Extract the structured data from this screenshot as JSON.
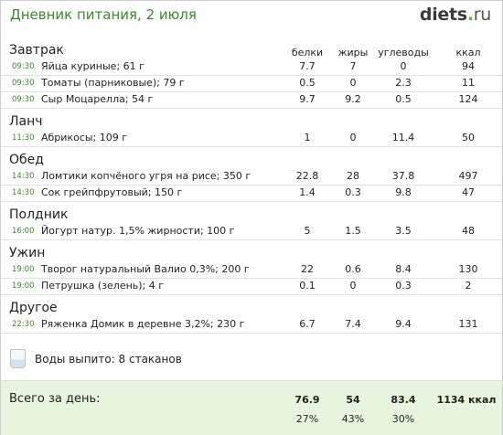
{
  "header": {
    "title": "Дневник питания, 2 июля",
    "logo_main": "diets",
    "logo_dot": ".",
    "logo_tld": "ru"
  },
  "columns": {
    "protein": "белки",
    "fat": "жиры",
    "carbs": "углеводы",
    "kcal": "ккал"
  },
  "meals": [
    {
      "title": "Завтрак",
      "items": [
        {
          "time": "09:30",
          "name": "Яйца куриные; 61 г",
          "protein": "7.7",
          "fat": "7",
          "carbs": "0",
          "kcal": "94"
        },
        {
          "time": "09:30",
          "name": "Томаты (парниковые); 79 г",
          "protein": "0.5",
          "fat": "0",
          "carbs": "2.3",
          "kcal": "11"
        },
        {
          "time": "09:30",
          "name": "Сыр Моцарелла; 54 г",
          "protein": "9.7",
          "fat": "9.2",
          "carbs": "0.5",
          "kcal": "124"
        }
      ]
    },
    {
      "title": "Ланч",
      "items": [
        {
          "time": "11:30",
          "name": "Абрикосы; 109 г",
          "protein": "1",
          "fat": "0",
          "carbs": "11.4",
          "kcal": "50"
        }
      ]
    },
    {
      "title": "Обед",
      "items": [
        {
          "time": "14:30",
          "name": "Ломтики копчёного угря на рисе; 350 г",
          "protein": "22.8",
          "fat": "28",
          "carbs": "37.8",
          "kcal": "497"
        },
        {
          "time": "14:30",
          "name": "Сок грейпфрутовый; 150 г",
          "protein": "1.4",
          "fat": "0.3",
          "carbs": "9.8",
          "kcal": "47"
        }
      ]
    },
    {
      "title": "Полдник",
      "items": [
        {
          "time": "16:00",
          "name": "Йогурт натур. 1,5% жирности; 100 г",
          "protein": "5",
          "fat": "1.5",
          "carbs": "3.5",
          "kcal": "48"
        }
      ]
    },
    {
      "title": "Ужин",
      "items": [
        {
          "time": "19:00",
          "name": "Творог натуральный Валио 0,3%; 200 г",
          "protein": "22",
          "fat": "0.6",
          "carbs": "8.4",
          "kcal": "130"
        },
        {
          "time": "19:00",
          "name": "Петрушка (зелень); 4 г",
          "protein": "0.1",
          "fat": "0",
          "carbs": "0.3",
          "kcal": "2"
        }
      ]
    },
    {
      "title": "Другое",
      "items": [
        {
          "time": "22:30",
          "name": "Ряженка Домик в деревне 3,2%; 230 г",
          "protein": "6.7",
          "fat": "7.4",
          "carbs": "9.4",
          "kcal": "131"
        }
      ]
    }
  ],
  "water": {
    "text": "Воды выпито: 8 стаканов",
    "icon": "water-glass-icon"
  },
  "totals": {
    "label": "Всего за день:",
    "protein": "76.9",
    "fat": "54",
    "carbs": "83.4",
    "kcal": "1134 ккал",
    "protein_pct": "27%",
    "fat_pct": "43%",
    "carbs_pct": "30%"
  }
}
